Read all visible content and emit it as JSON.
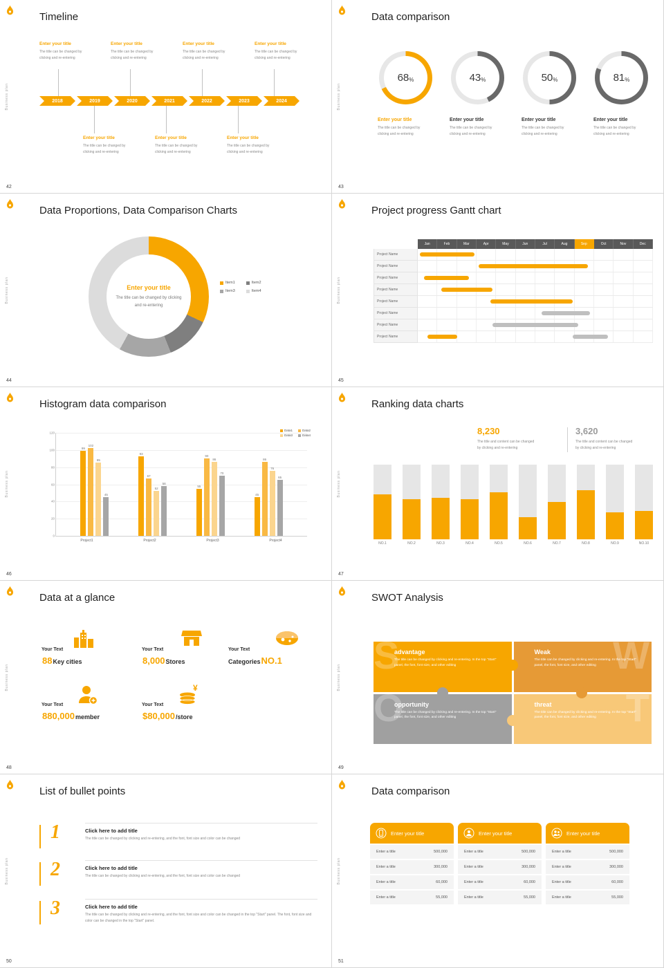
{
  "colors": {
    "accent": "#F7A600",
    "track": "#E7E7E7",
    "bar_gray": "#BFBFBF"
  },
  "sidebar_text": "Business plan",
  "common": {
    "entry_title": "Enter your title",
    "desc_line1": "The title can be changed by",
    "desc_line2": "clicking and re-entering"
  },
  "slide42": {
    "title": "Timeline",
    "page": "42",
    "years": [
      "2018",
      "2019",
      "2020",
      "2021",
      "2022",
      "2023",
      "2024"
    ]
  },
  "slide43": {
    "title": "Data comparison",
    "page": "43",
    "items": [
      {
        "value": "68",
        "suffix": "%",
        "title": "Enter your title",
        "color": "#F7A600",
        "title_color": "#F7A600"
      },
      {
        "value": "43",
        "suffix": "%",
        "title": "Enter your title",
        "color": "#696969",
        "title_color": "#333333"
      },
      {
        "value": "50",
        "suffix": "%",
        "title": "Enter your title",
        "color": "#696969",
        "title_color": "#333333"
      },
      {
        "value": "81",
        "suffix": "%",
        "title": "Enter your title",
        "color": "#696969",
        "title_color": "#333333"
      }
    ]
  },
  "slide44": {
    "title": "Data Proportions, Data Comparison Charts",
    "page": "44",
    "center_title": "Enter your title",
    "chart_data": {
      "type": "pie",
      "segments": [
        {
          "label": "Item1",
          "value": 32,
          "color": "#F7A600"
        },
        {
          "label": "Item2",
          "value": 12,
          "color": "#7F7F7F"
        },
        {
          "label": "Item3",
          "value": 14,
          "color": "#A6A6A6"
        },
        {
          "label": "Item4",
          "value": 42,
          "color": "#DCDCDC"
        }
      ]
    }
  },
  "slide45": {
    "title": "Project progress Gantt chart",
    "page": "45",
    "months": [
      "Jan",
      "Feb",
      "Mar",
      "Apr",
      "May",
      "Jun",
      "Jul",
      "Aug",
      "Sep",
      "Oct",
      "Nov",
      "Dec"
    ],
    "highlight_month": "Sep",
    "row_label": "Project Name",
    "rows": [
      {
        "bars": [
          {
            "s": 0.1,
            "e": 2.9,
            "c": "o"
          }
        ]
      },
      {
        "bars": [
          {
            "s": 3.1,
            "e": 8.7,
            "c": "o"
          }
        ]
      },
      {
        "bars": [
          {
            "s": 0.3,
            "e": 2.6,
            "c": "o"
          }
        ]
      },
      {
        "bars": [
          {
            "s": 1.2,
            "e": 3.8,
            "c": "o"
          }
        ]
      },
      {
        "bars": [
          {
            "s": 3.7,
            "e": 7.9,
            "c": "o"
          }
        ]
      },
      {
        "bars": [
          {
            "s": 6.3,
            "e": 8.8,
            "c": "g"
          }
        ]
      },
      {
        "bars": [
          {
            "s": 3.8,
            "e": 8.2,
            "c": "g"
          }
        ]
      },
      {
        "bars": [
          {
            "s": 0.5,
            "e": 2.0,
            "c": "o"
          },
          {
            "s": 7.9,
            "e": 9.7,
            "c": "g"
          }
        ]
      }
    ]
  },
  "slide46": {
    "title": "Histogram data comparison",
    "page": "46",
    "chart_data": {
      "type": "bar",
      "ymax": 120,
      "yticks": [
        0,
        20,
        40,
        60,
        80,
        100,
        120
      ],
      "categories": [
        "Project1",
        "Project2",
        "Project3",
        "Project4"
      ],
      "series": [
        {
          "name": "Data1",
          "color": "#F7A600",
          "values": [
            99,
            93,
            55,
            45
          ]
        },
        {
          "name": "Data2",
          "color": "#F9B944",
          "values": [
            102,
            67,
            90,
            86
          ]
        },
        {
          "name": "Data3",
          "color": "#FBD58E",
          "values": [
            85,
            52,
            86,
            76
          ]
        },
        {
          "name": "Data4",
          "color": "#A6A6A6",
          "values": [
            45,
            58,
            70,
            65
          ]
        }
      ]
    }
  },
  "slide47": {
    "title": "Ranking data charts",
    "page": "47",
    "stat1": {
      "value": "8,230",
      "desc1": "The title and content can be changed",
      "desc2": "by clicking and re-entering"
    },
    "stat2": {
      "value": "3,620",
      "desc1": "The title and content can be changed",
      "desc2": "by clicking and re-entering"
    },
    "chart_data": {
      "type": "bar",
      "categories": [
        "NO.1",
        "NO.2",
        "NO.3",
        "NO.4",
        "NO.5",
        "NO.6",
        "NO.7",
        "NO.8",
        "NO.9",
        "NO.10"
      ],
      "values": [
        0.6,
        0.54,
        0.56,
        0.54,
        0.63,
        0.3,
        0.5,
        0.66,
        0.36,
        0.38
      ]
    }
  },
  "slide48": {
    "title": "Data at a glance",
    "page": "48",
    "stats": [
      {
        "label": "Your Text",
        "pre": "",
        "big": "88",
        "post": "Key cities"
      },
      {
        "label": "Your Text",
        "pre": "",
        "big": "8,000",
        "post": "Stores"
      },
      {
        "label": "Your Text",
        "pre": "Categories",
        "big": "NO.1",
        "post": ""
      },
      {
        "label": "Your Text",
        "pre": "",
        "big": "880,000",
        "post": "member"
      },
      {
        "label": "Your Text",
        "pre": "",
        "big": "$80,000",
        "post": "/store"
      }
    ]
  },
  "slide49": {
    "title": "SWOT Analysis",
    "page": "49",
    "pieces": [
      {
        "letter": "S",
        "title": "advantage",
        "color": "#F7A600",
        "desc": "The title can be changed by clicking and re-entering. In the top \"Start\" panel, the font, font size, and other editing"
      },
      {
        "letter": "W",
        "title": "Weak",
        "color": "#E69A36",
        "desc": "The title can be changed by clicking and re-entering. In the top \"Start\" panel, the font, font size, and other editing"
      },
      {
        "letter": "O",
        "title": "opportunity",
        "color": "#A0A0A0",
        "desc": "The title can be changed by clicking and re-entering. In the top \"Start\" panel, the font, font size, and other editing"
      },
      {
        "letter": "T",
        "title": "threat",
        "color": "#F8C878",
        "desc": "The title can be changed by clicking and re-entering. In the top \"Start\" panel, the font, font size, and other editing"
      }
    ]
  },
  "slide50": {
    "title": "List of bullet points",
    "page": "50",
    "items": [
      {
        "num": "1",
        "title": "Click here to add title",
        "desc": "The title can be changed by clicking and re-entering, and the font, font size and color can be changed"
      },
      {
        "num": "2",
        "title": "Click here to add title",
        "desc": "The title can be changed by clicking and re-entering, and the font, font size and color can be changed"
      },
      {
        "num": "3",
        "title": "Click here to add title",
        "desc": "The title can be changed by clicking and re-entering, and the font, font size and color can be changed in the top \"Start\" panel. The font, font size and color can be changed in the top \"Start\" panel."
      }
    ]
  },
  "slide51": {
    "title": "Data comparison",
    "page": "51",
    "card_title": "Enter your title",
    "rows": [
      {
        "label": "Enter a title",
        "value": "500,000"
      },
      {
        "label": "Enter a title",
        "value": "300,000"
      },
      {
        "label": "Enter a title",
        "value": "60,000"
      },
      {
        "label": "Enter a title",
        "value": "55,000"
      }
    ]
  }
}
